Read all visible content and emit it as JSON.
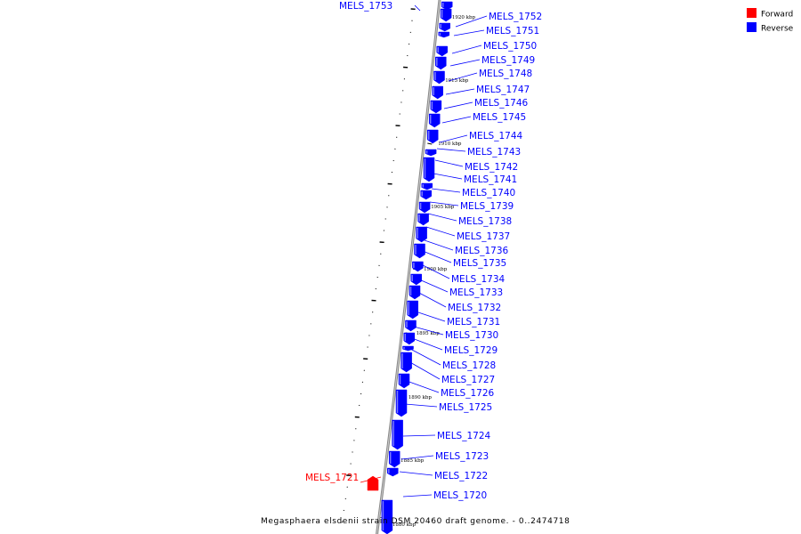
{
  "caption": "Megasphaera elsdenii strain DSM 20460 draft genome. - 0..2474718",
  "legend": [
    {
      "label": "Forward",
      "color": "#ff0000"
    },
    {
      "label": "Reverse",
      "color": "#0000ff"
    }
  ],
  "colors": {
    "forward": "#ff0000",
    "reverse": "#0000ff",
    "backbone": "#888888"
  },
  "kbp_ticks": [
    "1920 kbp",
    "1915 kbp",
    "1910 kbp",
    "1905 kbp",
    "1900 kbp",
    "1895 kbp",
    "1890 kbp",
    "1885 kbp",
    "1880 kbp"
  ],
  "genes": [
    {
      "name": "MELS_1753",
      "strand": "reverse"
    },
    {
      "name": "MELS_1752",
      "strand": "reverse"
    },
    {
      "name": "MELS_1751",
      "strand": "reverse"
    },
    {
      "name": "MELS_1750",
      "strand": "reverse"
    },
    {
      "name": "MELS_1749",
      "strand": "reverse"
    },
    {
      "name": "MELS_1748",
      "strand": "reverse"
    },
    {
      "name": "MELS_1747",
      "strand": "reverse"
    },
    {
      "name": "MELS_1746",
      "strand": "reverse"
    },
    {
      "name": "MELS_1745",
      "strand": "reverse"
    },
    {
      "name": "MELS_1744",
      "strand": "reverse"
    },
    {
      "name": "MELS_1743",
      "strand": "reverse"
    },
    {
      "name": "MELS_1742",
      "strand": "reverse"
    },
    {
      "name": "MELS_1741",
      "strand": "reverse"
    },
    {
      "name": "MELS_1740",
      "strand": "reverse"
    },
    {
      "name": "MELS_1739",
      "strand": "reverse"
    },
    {
      "name": "MELS_1738",
      "strand": "reverse"
    },
    {
      "name": "MELS_1737",
      "strand": "reverse"
    },
    {
      "name": "MELS_1736",
      "strand": "reverse"
    },
    {
      "name": "MELS_1735",
      "strand": "reverse"
    },
    {
      "name": "MELS_1734",
      "strand": "reverse"
    },
    {
      "name": "MELS_1733",
      "strand": "reverse"
    },
    {
      "name": "MELS_1732",
      "strand": "reverse"
    },
    {
      "name": "MELS_1731",
      "strand": "reverse"
    },
    {
      "name": "MELS_1730",
      "strand": "reverse"
    },
    {
      "name": "MELS_1729",
      "strand": "reverse"
    },
    {
      "name": "MELS_1728",
      "strand": "reverse"
    },
    {
      "name": "MELS_1727",
      "strand": "reverse"
    },
    {
      "name": "MELS_1726",
      "strand": "reverse"
    },
    {
      "name": "MELS_1725",
      "strand": "reverse"
    },
    {
      "name": "MELS_1724",
      "strand": "reverse"
    },
    {
      "name": "MELS_1723",
      "strand": "reverse"
    },
    {
      "name": "MELS_1722",
      "strand": "reverse"
    },
    {
      "name": "MELS_1721",
      "strand": "forward"
    },
    {
      "name": "MELS_1720",
      "strand": "reverse"
    }
  ]
}
